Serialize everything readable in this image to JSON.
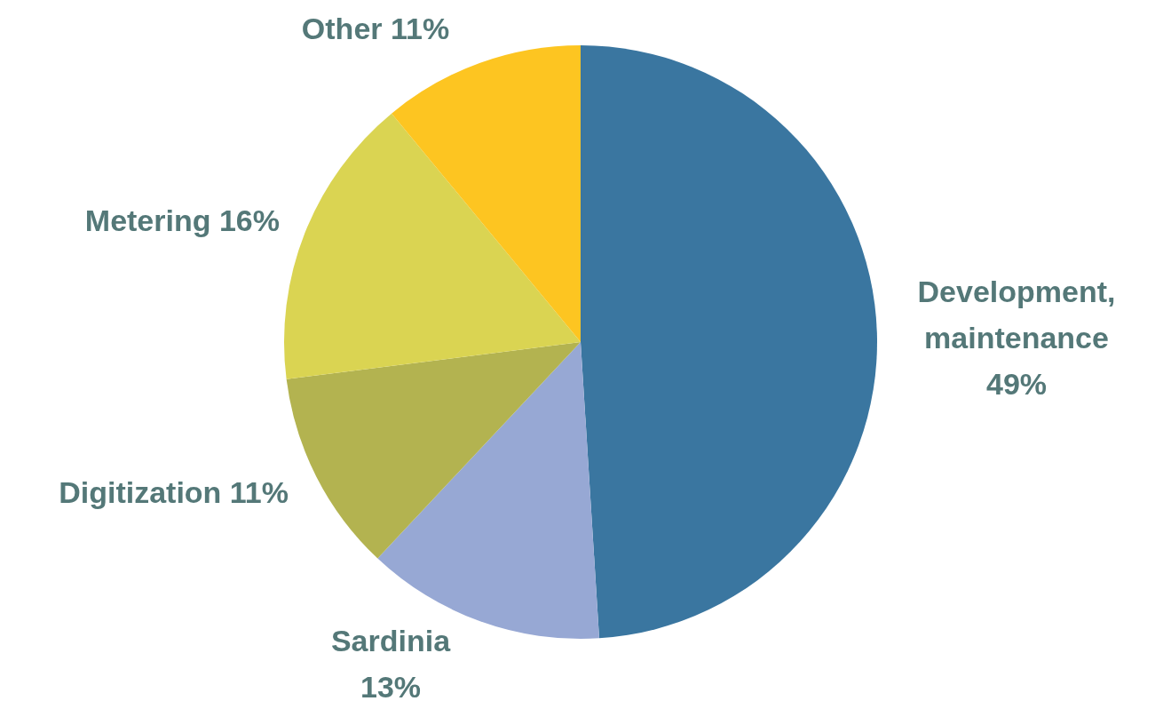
{
  "chart_data": {
    "type": "pie",
    "categories": [
      "Development, maintenance",
      "Sardinia",
      "Digitization",
      "Metering",
      "Other"
    ],
    "values": [
      49,
      13,
      11,
      16,
      11
    ],
    "value_labels": [
      "49%",
      "13%",
      "11%",
      "16%",
      "11%"
    ],
    "colors": [
      "#3a76a0",
      "#97a8d4",
      "#b3b350",
      "#dad452",
      "#fdc521"
    ]
  }
}
